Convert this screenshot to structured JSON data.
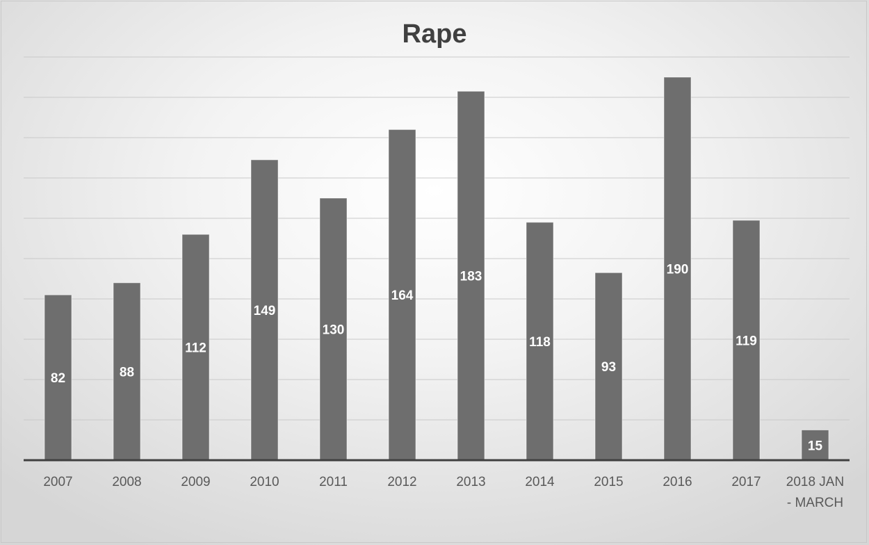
{
  "chart_data": {
    "type": "bar",
    "title": "Rape",
    "xlabel": "",
    "ylabel": "",
    "categories": [
      "2007",
      "2008",
      "2009",
      "2010",
      "2011",
      "2012",
      "2013",
      "2014",
      "2015",
      "2016",
      "2017",
      "2018 JAN - MARCH"
    ],
    "values": [
      82,
      88,
      112,
      149,
      130,
      164,
      183,
      118,
      93,
      190,
      119,
      15
    ],
    "ylim": [
      0,
      200
    ],
    "grid": true,
    "legend": "none",
    "colors": {
      "bar": "#6e6e6e",
      "label": "#ffffff",
      "axis": "#404040",
      "grid": "#c9c9c9"
    }
  }
}
